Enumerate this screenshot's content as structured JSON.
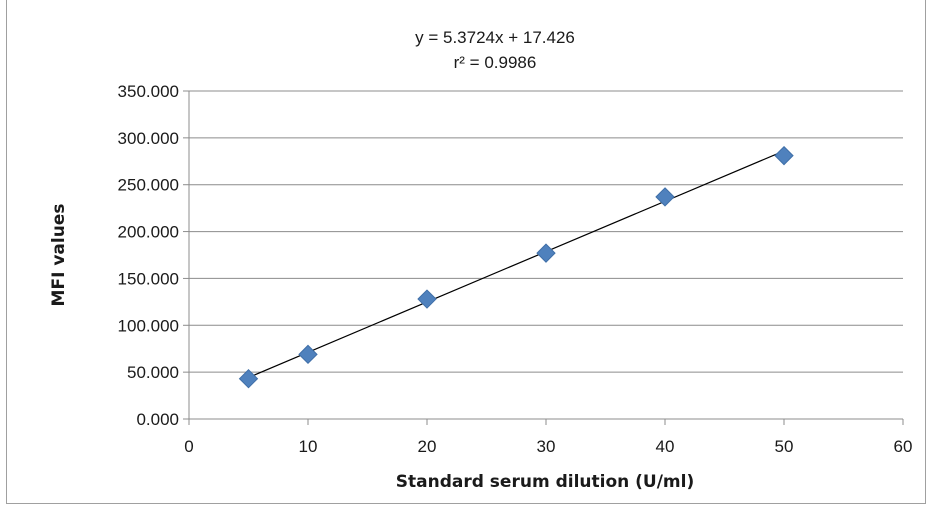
{
  "chart_data": {
    "type": "scatter",
    "title": "",
    "xlabel": "Standard serum dilution (U/ml)",
    "ylabel": "MFI values",
    "xlim": [
      0,
      60
    ],
    "ylim": [
      0,
      350
    ],
    "xticks": [
      0,
      10,
      20,
      30,
      40,
      50,
      60
    ],
    "yticks": [
      0,
      50,
      100,
      150,
      200,
      250,
      300,
      350
    ],
    "ytick_labels": [
      "0.000",
      "50.000",
      "100.000",
      "150.000",
      "200.000",
      "250.000",
      "300.000",
      "350.000"
    ],
    "grid": "horizontal",
    "legend": "none",
    "series": [
      {
        "x": [
          5,
          10,
          20,
          30,
          40,
          50
        ],
        "y": [
          43,
          69,
          128,
          177,
          237,
          281
        ],
        "marker": "diamond",
        "color": "#4f81bd"
      }
    ],
    "trendline": {
      "slope": 5.3724,
      "intercept": 17.426,
      "x_range": [
        5,
        50
      ],
      "color": "#000000"
    },
    "annotations": {
      "equation": "y = 5.3724x + 17.426",
      "r_squared": "r² = 0.9986"
    }
  }
}
